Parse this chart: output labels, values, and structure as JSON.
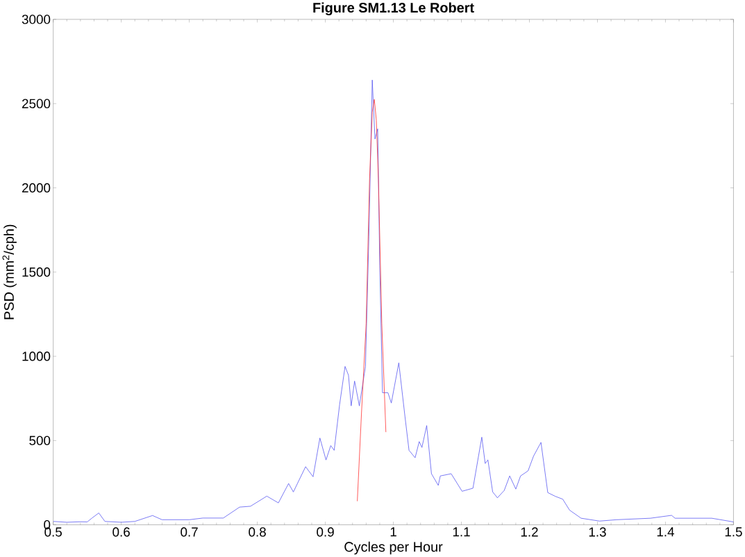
{
  "chart_data": {
    "type": "line",
    "title": "Figure SM1.13  Le Robert",
    "xlabel": "Cycles per Hour",
    "ylabel": "PSD (mm$^{2}$/cph)",
    "xlim": [
      0.5,
      1.5
    ],
    "ylim": [
      0,
      3000
    ],
    "xticks": [
      0.5,
      0.6,
      0.7,
      0.8,
      0.9,
      1,
      1.1,
      1.2,
      1.3,
      1.4,
      1.5
    ],
    "yticks": [
      0,
      500,
      1000,
      1500,
      2000,
      2500,
      3000
    ],
    "series": [
      {
        "color": "#4a4af0",
        "x": [
          0.5,
          0.52,
          0.54,
          0.55,
          0.557,
          0.567,
          0.576,
          0.6,
          0.62,
          0.646,
          0.66,
          0.7,
          0.72,
          0.75,
          0.774,
          0.79,
          0.814,
          0.831,
          0.846,
          0.853,
          0.871,
          0.882,
          0.892,
          0.901,
          0.908,
          0.913,
          0.921,
          0.929,
          0.934,
          0.938,
          0.943,
          0.95,
          0.959,
          0.964,
          0.969,
          0.973,
          0.977,
          0.98,
          0.984,
          0.992,
          0.997,
          1.008,
          1.017,
          1.023,
          1.032,
          1.038,
          1.042,
          1.049,
          1.056,
          1.066,
          1.069,
          1.085,
          1.101,
          1.117,
          1.13,
          1.135,
          1.139,
          1.146,
          1.153,
          1.163,
          1.171,
          1.18,
          1.187,
          1.198,
          1.206,
          1.217,
          1.227,
          1.238,
          1.249,
          1.259,
          1.276,
          1.303,
          1.328,
          1.378,
          1.409,
          1.414,
          1.468,
          1.5
        ],
        "values": [
          20,
          15,
          18,
          17,
          40,
          70,
          20,
          15,
          20,
          55,
          30,
          30,
          40,
          40,
          105,
          110,
          170,
          130,
          245,
          195,
          345,
          285,
          515,
          385,
          470,
          442,
          714,
          940,
          888,
          706,
          853,
          706,
          940,
          1710,
          2640,
          2290,
          2350,
          1537,
          784,
          784,
          723,
          961,
          645,
          442,
          398,
          494,
          459,
          589,
          303,
          234,
          290,
          303,
          199,
          217,
          520,
          364,
          385,
          195,
          160,
          204,
          290,
          212,
          290,
          320,
          407,
          489,
          191,
          169,
          152,
          87,
          39,
          22,
          30,
          39,
          56,
          39,
          39,
          17
        ]
      },
      {
        "color": "#ff2020",
        "x": [
          0.947,
          0.953,
          0.96,
          0.965,
          0.969,
          0.972,
          0.975,
          0.978,
          0.983,
          0.989
        ],
        "values": [
          140,
          650,
          1195,
          2052,
          2450,
          2525,
          2400,
          2052,
          1195,
          550
        ]
      }
    ]
  }
}
